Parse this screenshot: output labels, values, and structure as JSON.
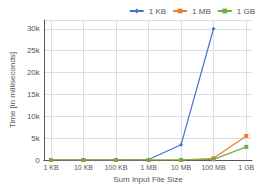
{
  "chart_data": {
    "type": "line",
    "xlabel": "Sum Input File Size",
    "ylabel": "Time [in milliseconds]",
    "log": "x",
    "xlim": [
      614.4,
      1610612736
    ],
    "xticks": [
      {
        "value": 1024,
        "label": "1 KB"
      },
      {
        "value": 10240,
        "label": "10 KB"
      },
      {
        "value": 102400,
        "label": "100 KB"
      },
      {
        "value": 1048576,
        "label": "1 MB"
      },
      {
        "value": 10485760,
        "label": "10 MB"
      },
      {
        "value": 104857600,
        "label": "100 MB"
      },
      {
        "value": 1073741824,
        "label": "1 GB"
      }
    ],
    "ylim": [
      0,
      32000
    ],
    "yticks": [
      0,
      {
        "value": 5000,
        "label": "5k"
      },
      {
        "value": 10000,
        "label": "10k"
      },
      {
        "value": 15000,
        "label": "15k"
      },
      {
        "value": 20000,
        "label": "20k"
      },
      {
        "value": 25000,
        "label": "25k"
      },
      {
        "value": 30000,
        "label": "30k"
      }
    ],
    "grid": true,
    "legend": "upper right",
    "series": [
      {
        "name": "1 KB",
        "color": "#4472C4",
        "marker": "diamond",
        "x": [
          1024,
          10240,
          102400,
          1048576,
          10485760,
          104857600
        ],
        "values": [
          0,
          0,
          0,
          100,
          3500,
          30000
        ]
      },
      {
        "name": "1 MB",
        "color": "#ED7D31",
        "marker": "square",
        "x": [
          1024,
          10240,
          102400,
          1048576,
          10485760,
          104857600,
          1073741824
        ],
        "values": [
          0,
          0,
          0,
          0,
          0,
          400,
          5500
        ]
      },
      {
        "name": "1 GB",
        "color": "#70AD47",
        "marker": "square",
        "x": [
          1024,
          10240,
          102400,
          1048576,
          10485760,
          104857600,
          1073741824
        ],
        "values": [
          0,
          0,
          0,
          0,
          0,
          150,
          3000
        ]
      }
    ]
  }
}
